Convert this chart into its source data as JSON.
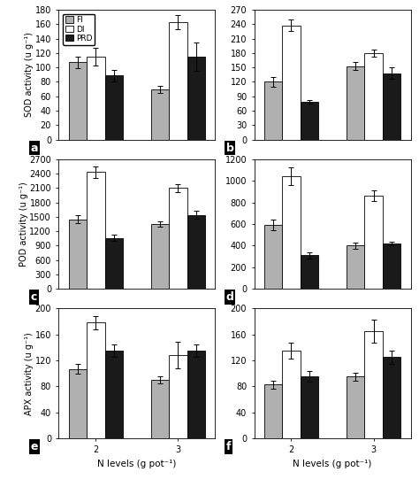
{
  "panels": {
    "a": {
      "ylabel": "SOD activity (u g⁻¹)",
      "ylim": [
        0,
        180
      ],
      "yticks": [
        0,
        20,
        40,
        60,
        80,
        100,
        120,
        140,
        160,
        180
      ],
      "n2": {
        "FI": 107,
        "DI": 115,
        "PRD": 89
      },
      "n3": {
        "FI": 70,
        "DI": 163,
        "PRD": 115
      },
      "n2_err": {
        "FI": 8,
        "DI": 12,
        "PRD": 8
      },
      "n3_err": {
        "FI": 5,
        "DI": 10,
        "PRD": 20
      },
      "label": "a",
      "show_legend": true,
      "show_xticks": false
    },
    "b": {
      "ylabel": "",
      "ylim": [
        0,
        270
      ],
      "yticks": [
        0,
        30,
        60,
        90,
        120,
        150,
        180,
        210,
        240,
        270
      ],
      "n2": {
        "FI": 120,
        "DI": 237,
        "PRD": 78
      },
      "n3": {
        "FI": 153,
        "DI": 180,
        "PRD": 138
      },
      "n2_err": {
        "FI": 10,
        "DI": 12,
        "PRD": 4
      },
      "n3_err": {
        "FI": 8,
        "DI": 8,
        "PRD": 12
      },
      "label": "b",
      "show_legend": false,
      "show_xticks": false
    },
    "c": {
      "ylabel": "POD activity (u g⁻¹)",
      "ylim": [
        0,
        2700
      ],
      "yticks": [
        0,
        300,
        600,
        900,
        1200,
        1500,
        1800,
        2100,
        2400,
        2700
      ],
      "n2": {
        "FI": 1450,
        "DI": 2430,
        "PRD": 1060
      },
      "n3": {
        "FI": 1350,
        "DI": 2100,
        "PRD": 1540
      },
      "n2_err": {
        "FI": 80,
        "DI": 120,
        "PRD": 60
      },
      "n3_err": {
        "FI": 60,
        "DI": 80,
        "PRD": 80
      },
      "label": "c",
      "show_legend": false,
      "show_xticks": false
    },
    "d": {
      "ylabel": "",
      "ylim": [
        0,
        1200
      ],
      "yticks": [
        0,
        200,
        400,
        600,
        800,
        1000,
        1200
      ],
      "n2": {
        "FI": 590,
        "DI": 1040,
        "PRD": 310
      },
      "n3": {
        "FI": 400,
        "DI": 860,
        "PRD": 420
      },
      "n2_err": {
        "FI": 50,
        "DI": 80,
        "PRD": 30
      },
      "n3_err": {
        "FI": 30,
        "DI": 50,
        "PRD": 20
      },
      "label": "d",
      "show_legend": false,
      "show_xticks": false
    },
    "e": {
      "ylabel": "APX activity (u g⁻¹)",
      "ylim": [
        0,
        200
      ],
      "yticks": [
        0,
        40,
        80,
        120,
        160,
        200
      ],
      "n2": {
        "FI": 107,
        "DI": 178,
        "PRD": 135
      },
      "n3": {
        "FI": 90,
        "DI": 128,
        "PRD": 135
      },
      "n2_err": {
        "FI": 8,
        "DI": 10,
        "PRD": 10
      },
      "n3_err": {
        "FI": 6,
        "DI": 20,
        "PRD": 10
      },
      "label": "e",
      "show_legend": false,
      "show_xticks": true,
      "xlabel": "N levels (g pot⁻¹)"
    },
    "f": {
      "ylabel": "",
      "ylim": [
        0,
        200
      ],
      "yticks": [
        0,
        40,
        80,
        120,
        160,
        200
      ],
      "n2": {
        "FI": 83,
        "DI": 135,
        "PRD": 95
      },
      "n3": {
        "FI": 95,
        "DI": 165,
        "PRD": 125
      },
      "n2_err": {
        "FI": 6,
        "DI": 12,
        "PRD": 8
      },
      "n3_err": {
        "FI": 6,
        "DI": 18,
        "PRD": 10
      },
      "label": "f",
      "show_legend": false,
      "show_xticks": true,
      "xlabel": "N levels (g pot⁻¹)"
    }
  },
  "bar_colors": {
    "FI": "#b0b0b0",
    "DI": "#ffffff",
    "PRD": "#1a1a1a"
  },
  "bar_edgecolor": "#000000",
  "bar_width": 0.22,
  "group_centers": [
    1.0,
    2.0
  ],
  "background_color": "#ffffff"
}
